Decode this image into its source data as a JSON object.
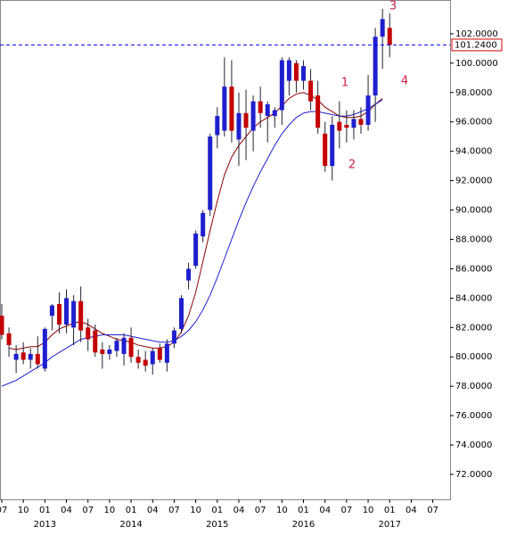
{
  "chart_data": {
    "type": "candlestick",
    "categories": [
      "2012-07",
      "2012-08",
      "2012-09",
      "2012-10",
      "2012-11",
      "2012-12",
      "2013-01",
      "2013-02",
      "2013-03",
      "2013-04",
      "2013-05",
      "2013-06",
      "2013-07",
      "2013-08",
      "2013-09",
      "2013-10",
      "2013-11",
      "2013-12",
      "2014-01",
      "2014-02",
      "2014-03",
      "2014-04",
      "2014-05",
      "2014-06",
      "2014-07",
      "2014-08",
      "2014-09",
      "2014-10",
      "2014-11",
      "2014-12",
      "2015-01",
      "2015-02",
      "2015-03",
      "2015-04",
      "2015-05",
      "2015-06",
      "2015-07",
      "2015-08",
      "2015-09",
      "2015-10",
      "2015-11",
      "2015-12",
      "2016-01",
      "2016-02",
      "2016-03",
      "2016-04",
      "2016-05",
      "2016-06",
      "2016-07",
      "2016-08",
      "2016-09",
      "2016-10",
      "2016-11",
      "2016-12",
      "2017-01"
    ],
    "open": [
      82.8,
      81.6,
      79.8,
      80.3,
      79.8,
      80.2,
      79.2,
      82.8,
      83.6,
      82.2,
      82.0,
      83.8,
      82.0,
      81.8,
      80.5,
      80.2,
      80.4,
      80.2,
      81.3,
      80.0,
      79.8,
      79.5,
      80.6,
      79.6,
      80.9,
      81.9,
      85.2,
      86.2,
      88.2,
      90.0,
      95.1,
      95.4,
      98.4,
      94.8,
      96.6,
      95.4,
      97.4,
      96.4,
      96.4,
      96.8,
      98.8,
      100.0,
      98.8,
      98.8,
      97.8,
      95.2,
      93.0,
      96.0,
      95.8,
      95.6,
      96.2,
      95.8,
      97.8,
      101.8,
      102.4
    ],
    "high": [
      83.6,
      82.0,
      80.8,
      81.0,
      80.6,
      81.4,
      82.0,
      83.6,
      84.4,
      84.6,
      84.2,
      84.8,
      82.6,
      82.2,
      81.0,
      80.8,
      81.3,
      81.6,
      82.0,
      80.5,
      80.4,
      80.6,
      80.9,
      81.2,
      82.0,
      84.2,
      86.4,
      88.6,
      90.0,
      95.2,
      97.0,
      100.4,
      100.2,
      98.0,
      98.2,
      97.8,
      98.4,
      97.4,
      97.0,
      100.4,
      100.4,
      100.2,
      100.2,
      99.6,
      98.8,
      96.0,
      96.4,
      97.4,
      96.8,
      96.8,
      97.0,
      99.2,
      102.4,
      103.7,
      103.4
    ],
    "low": [
      81.2,
      80.0,
      78.9,
      79.5,
      79.2,
      79.2,
      79.0,
      81.8,
      81.6,
      81.6,
      80.8,
      81.0,
      80.4,
      80.0,
      79.2,
      79.8,
      80.0,
      79.4,
      79.6,
      79.2,
      79.0,
      78.8,
      79.6,
      79.0,
      80.6,
      81.6,
      84.6,
      86.0,
      87.8,
      89.6,
      94.2,
      95.0,
      94.6,
      93.0,
      93.4,
      94.0,
      95.6,
      94.6,
      95.6,
      95.8,
      97.8,
      98.0,
      98.2,
      96.8,
      95.2,
      92.6,
      92.0,
      94.2,
      94.6,
      94.8,
      95.2,
      95.4,
      96.0,
      99.6,
      100.4
    ],
    "close": [
      81.5,
      80.8,
      80.2,
      79.8,
      80.2,
      79.5,
      81.9,
      83.5,
      82.2,
      84.0,
      83.8,
      81.8,
      81.2,
      80.3,
      80.2,
      80.5,
      81.1,
      81.3,
      80.0,
      79.6,
      79.4,
      80.4,
      79.8,
      80.9,
      81.8,
      84.0,
      86.0,
      88.4,
      89.8,
      95.0,
      96.4,
      98.4,
      95.4,
      96.6,
      95.6,
      97.4,
      96.6,
      97.2,
      96.8,
      100.2,
      100.2,
      98.8,
      99.8,
      97.4,
      95.6,
      93.0,
      95.8,
      95.4,
      95.6,
      96.2,
      95.8,
      97.8,
      101.8,
      103.0,
      101.24
    ],
    "up_color": "#1f1fcf",
    "down_color": "#c40000",
    "moving_averages": [
      {
        "color": "#8b0000",
        "values": [
          null,
          80.6,
          80.5,
          80.6,
          80.7,
          80.7,
          81.0,
          81.5,
          81.9,
          82.1,
          82.3,
          82.4,
          82.2,
          81.9,
          81.6,
          81.4,
          81.2,
          81.1,
          81.0,
          80.8,
          80.7,
          80.6,
          80.6,
          80.7,
          81.0,
          81.7,
          82.8,
          84.4,
          86.5,
          88.6,
          90.6,
          92.4,
          93.6,
          94.4,
          95.0,
          95.6,
          96.0,
          96.3,
          96.6,
          97.1,
          97.6,
          97.9,
          98.0,
          97.8,
          97.5,
          97.0,
          96.7,
          96.4,
          96.3,
          96.3,
          96.4,
          96.7,
          97.2,
          97.6,
          null
        ]
      },
      {
        "color": "#1f1fcf",
        "values": [
          78.0,
          78.2,
          78.4,
          78.7,
          79.0,
          79.3,
          79.6,
          80.0,
          80.3,
          80.6,
          80.9,
          81.2,
          81.3,
          81.4,
          81.5,
          81.5,
          81.5,
          81.5,
          81.4,
          81.3,
          81.2,
          81.1,
          81.0,
          81.0,
          81.1,
          81.4,
          81.8,
          82.4,
          83.2,
          84.2,
          85.4,
          86.7,
          88.0,
          89.3,
          90.5,
          91.6,
          92.6,
          93.5,
          94.4,
          95.2,
          95.8,
          96.3,
          96.6,
          96.7,
          96.7,
          96.6,
          96.5,
          96.4,
          96.4,
          96.5,
          96.7,
          96.9,
          97.2,
          97.5,
          null
        ]
      }
    ],
    "last_price": {
      "value": 101.24,
      "label": "101.2400",
      "color": "#0000ff"
    },
    "ylim": [
      70.3,
      104.3
    ],
    "yticks": [
      {
        "value": 72,
        "label": "72.0000"
      },
      {
        "value": 74,
        "label": "74.0000"
      },
      {
        "value": 76,
        "label": "76.0000"
      },
      {
        "value": 78,
        "label": "78.0000"
      },
      {
        "value": 80,
        "label": "80.0000"
      },
      {
        "value": 82,
        "label": "82.0000"
      },
      {
        "value": 84,
        "label": "84.0000"
      },
      {
        "value": 86,
        "label": "86.0000"
      },
      {
        "value": 88,
        "label": "88.0000"
      },
      {
        "value": 90,
        "label": "90.0000"
      },
      {
        "value": 92,
        "label": "92.0000"
      },
      {
        "value": 94,
        "label": "94.0000"
      },
      {
        "value": 96,
        "label": "96.0000"
      },
      {
        "value": 98,
        "label": "98.0000"
      },
      {
        "value": 100,
        "label": "100.0000"
      },
      {
        "value": 102,
        "label": "102.0000"
      }
    ],
    "month_labels": [
      "07",
      "10",
      "01",
      "04",
      "07",
      "10",
      "01",
      "04",
      "07",
      "10",
      "01",
      "04",
      "07",
      "10",
      "01",
      "04",
      "07",
      "10",
      "01",
      "04",
      "07"
    ],
    "year_labels": [
      "2013",
      "2014",
      "2015",
      "2016",
      "2017"
    ],
    "annotations": [
      "1",
      "2",
      "3",
      "4"
    ]
  }
}
